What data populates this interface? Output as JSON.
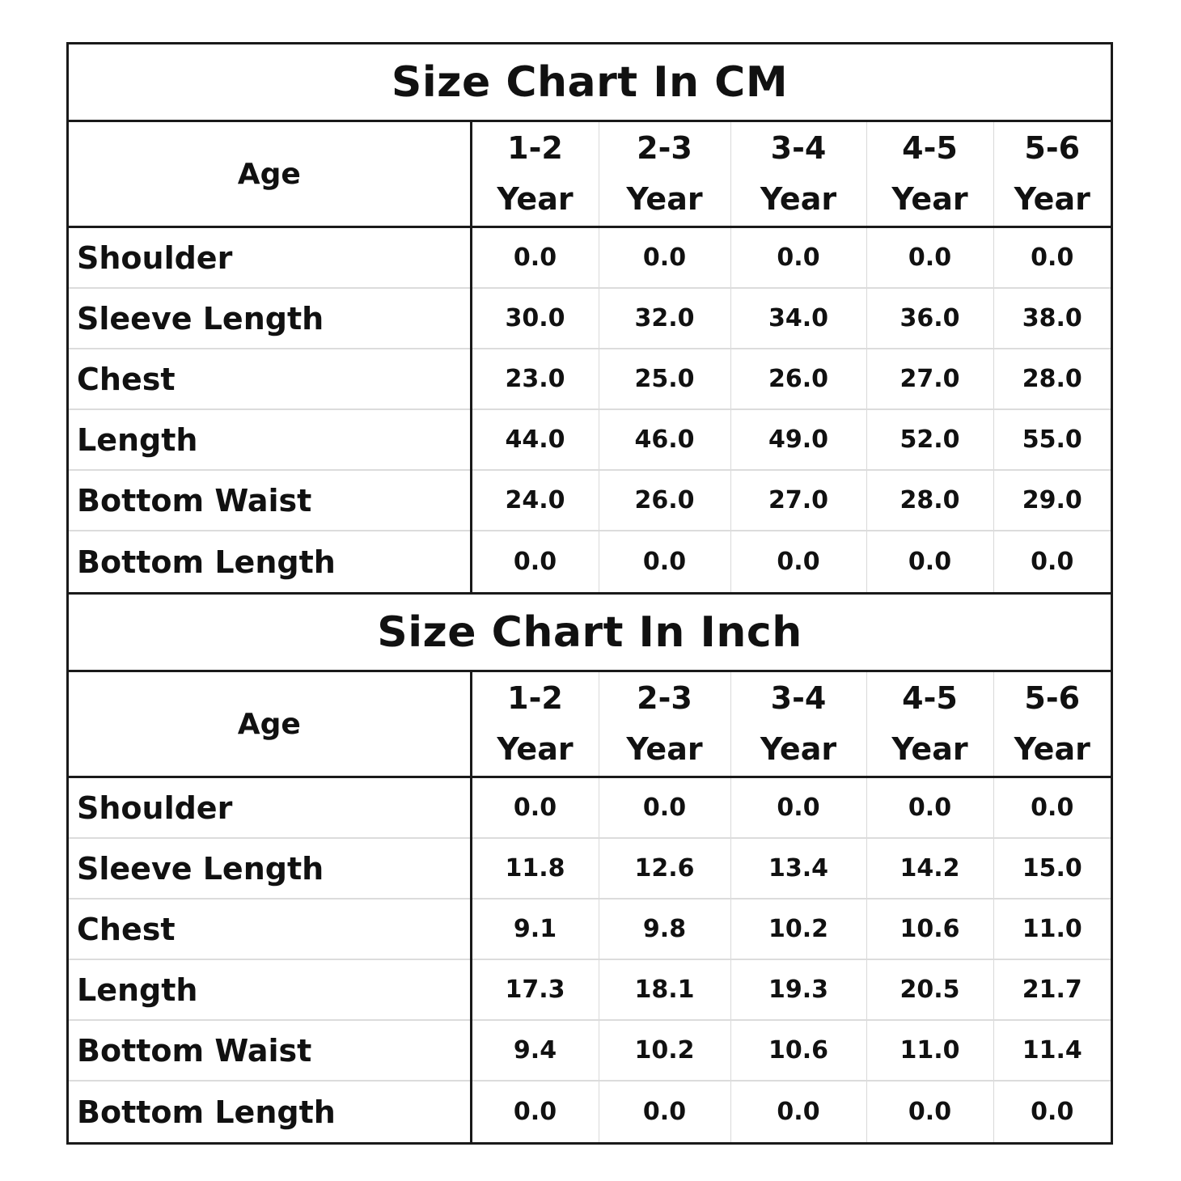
{
  "sections": [
    {
      "title": "Size Chart In CM",
      "age_label": "Age",
      "columns": [
        {
          "range": "1-2",
          "unit": "Year"
        },
        {
          "range": "2-3",
          "unit": "Year"
        },
        {
          "range": "3-4",
          "unit": "Year"
        },
        {
          "range": "4-5",
          "unit": "Year"
        },
        {
          "range": "5-6",
          "unit": "Year"
        }
      ],
      "rows": [
        {
          "label": "Shoulder",
          "values": [
            "0.0",
            "0.0",
            "0.0",
            "0.0",
            "0.0"
          ]
        },
        {
          "label": "Sleeve Length",
          "values": [
            "30.0",
            "32.0",
            "34.0",
            "36.0",
            "38.0"
          ]
        },
        {
          "label": "Chest",
          "values": [
            "23.0",
            "25.0",
            "26.0",
            "27.0",
            "28.0"
          ]
        },
        {
          "label": "Length",
          "values": [
            "44.0",
            "46.0",
            "49.0",
            "52.0",
            "55.0"
          ]
        },
        {
          "label": "Bottom Waist",
          "values": [
            "24.0",
            "26.0",
            "27.0",
            "28.0",
            "29.0"
          ]
        },
        {
          "label": "Bottom Length",
          "values": [
            "0.0",
            "0.0",
            "0.0",
            "0.0",
            "0.0"
          ]
        }
      ]
    },
    {
      "title": "Size Chart In Inch",
      "age_label": "Age",
      "columns": [
        {
          "range": "1-2",
          "unit": "Year"
        },
        {
          "range": "2-3",
          "unit": "Year"
        },
        {
          "range": "3-4",
          "unit": "Year"
        },
        {
          "range": "4-5",
          "unit": "Year"
        },
        {
          "range": "5-6",
          "unit": "Year"
        }
      ],
      "rows": [
        {
          "label": "Shoulder",
          "values": [
            "0.0",
            "0.0",
            "0.0",
            "0.0",
            "0.0"
          ]
        },
        {
          "label": "Sleeve Length",
          "values": [
            "11.8",
            "12.6",
            "13.4",
            "14.2",
            "15.0"
          ]
        },
        {
          "label": "Chest",
          "values": [
            "9.1",
            "9.8",
            "10.2",
            "10.6",
            "11.0"
          ]
        },
        {
          "label": "Length",
          "values": [
            "17.3",
            "18.1",
            "19.3",
            "20.5",
            "21.7"
          ]
        },
        {
          "label": "Bottom Waist",
          "values": [
            "9.4",
            "10.2",
            "10.6",
            "11.0",
            "11.4"
          ]
        },
        {
          "label": "Bottom Length",
          "values": [
            "0.0",
            "0.0",
            "0.0",
            "0.0",
            "0.0"
          ]
        }
      ]
    }
  ]
}
